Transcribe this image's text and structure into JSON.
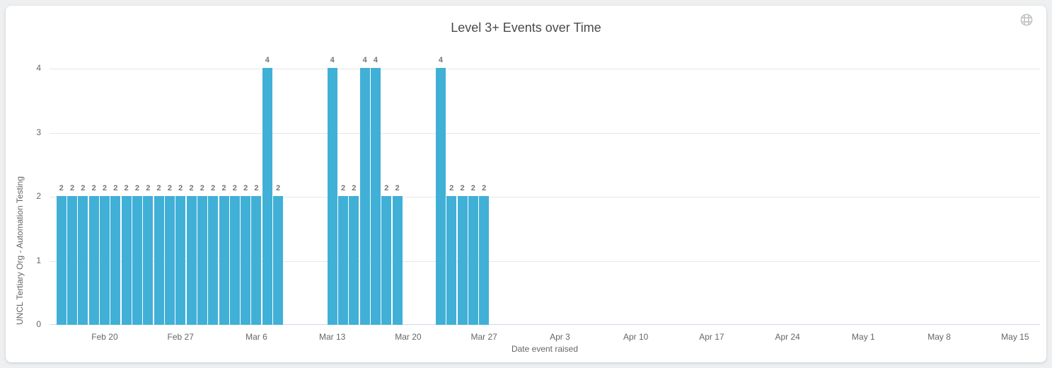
{
  "icons": {
    "top_right": "globe-icon"
  },
  "chart_data": {
    "type": "bar",
    "title": "Level 3+ Events over Time",
    "xlabel": "Date event raised",
    "ylabel": "UNCL Tertiary Org - Automation Testing",
    "ylim": [
      0,
      4
    ],
    "yticks": [
      0,
      1,
      2,
      3,
      4
    ],
    "grid": true,
    "legend_position": "none",
    "bar_color": "#41b0d7",
    "axis_line_color": "#ccd6eb",
    "gridline_color": "#e7e7e7",
    "xticks": [
      {
        "label": "Feb 20",
        "day": 4
      },
      {
        "label": "Feb 27",
        "day": 11
      },
      {
        "label": "Mar 6",
        "day": 18
      },
      {
        "label": "Mar 13",
        "day": 25
      },
      {
        "label": "Mar 20",
        "day": 32
      },
      {
        "label": "Mar 27",
        "day": 39
      },
      {
        "label": "Apr 3",
        "day": 46
      },
      {
        "label": "Apr 10",
        "day": 53
      },
      {
        "label": "Apr 17",
        "day": 60
      },
      {
        "label": "Apr 24",
        "day": 67
      },
      {
        "label": "May 1",
        "day": 74
      },
      {
        "label": "May 8",
        "day": 81
      },
      {
        "label": "May 15",
        "day": 88
      }
    ],
    "points": [
      {
        "date": "Feb 16",
        "day": 0,
        "value": 2
      },
      {
        "date": "Feb 17",
        "day": 1,
        "value": 2
      },
      {
        "date": "Feb 18",
        "day": 2,
        "value": 2
      },
      {
        "date": "Feb 19",
        "day": 3,
        "value": 2
      },
      {
        "date": "Feb 20",
        "day": 4,
        "value": 2
      },
      {
        "date": "Feb 21",
        "day": 5,
        "value": 2
      },
      {
        "date": "Feb 22",
        "day": 6,
        "value": 2
      },
      {
        "date": "Feb 23",
        "day": 7,
        "value": 2
      },
      {
        "date": "Feb 24",
        "day": 8,
        "value": 2
      },
      {
        "date": "Feb 25",
        "day": 9,
        "value": 2
      },
      {
        "date": "Feb 26",
        "day": 10,
        "value": 2
      },
      {
        "date": "Feb 27",
        "day": 11,
        "value": 2
      },
      {
        "date": "Feb 28",
        "day": 12,
        "value": 2
      },
      {
        "date": "Mar 1",
        "day": 13,
        "value": 2
      },
      {
        "date": "Mar 2",
        "day": 14,
        "value": 2
      },
      {
        "date": "Mar 3",
        "day": 15,
        "value": 2
      },
      {
        "date": "Mar 4",
        "day": 16,
        "value": 2
      },
      {
        "date": "Mar 5",
        "day": 17,
        "value": 2
      },
      {
        "date": "Mar 6",
        "day": 18,
        "value": 2
      },
      {
        "date": "Mar 7",
        "day": 19,
        "value": 4
      },
      {
        "date": "Mar 8",
        "day": 20,
        "value": 2
      },
      {
        "date": "Mar 13",
        "day": 25,
        "value": 4
      },
      {
        "date": "Mar 14",
        "day": 26,
        "value": 2
      },
      {
        "date": "Mar 15",
        "day": 27,
        "value": 2
      },
      {
        "date": "Mar 16",
        "day": 28,
        "value": 4
      },
      {
        "date": "Mar 17",
        "day": 29,
        "value": 4
      },
      {
        "date": "Mar 18",
        "day": 30,
        "value": 2
      },
      {
        "date": "Mar 19",
        "day": 31,
        "value": 2
      },
      {
        "date": "Mar 23",
        "day": 35,
        "value": 4
      },
      {
        "date": "Mar 24",
        "day": 36,
        "value": 2
      },
      {
        "date": "Mar 25",
        "day": 37,
        "value": 2
      },
      {
        "date": "Mar 26",
        "day": 38,
        "value": 2
      },
      {
        "date": "Mar 27",
        "day": 39,
        "value": 2
      }
    ]
  }
}
